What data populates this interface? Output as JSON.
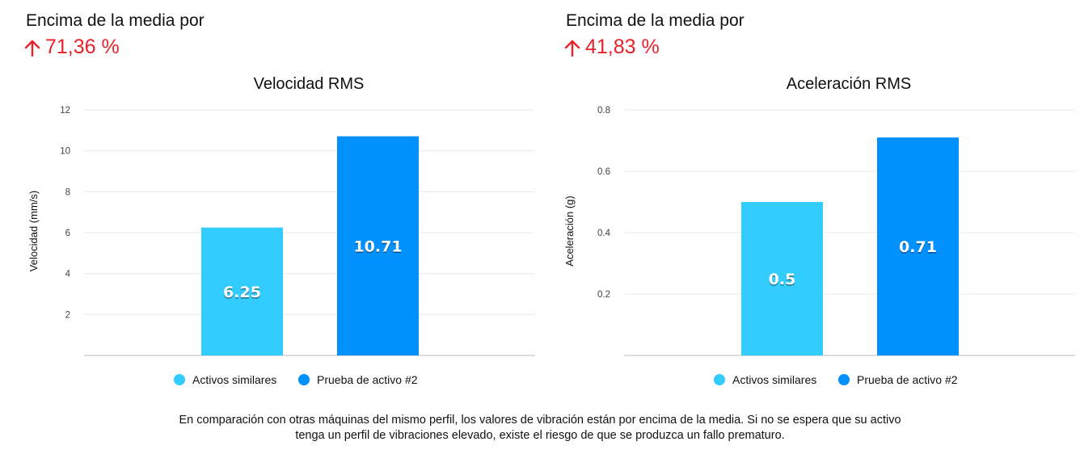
{
  "panels": [
    {
      "heading": "Encima de la media por",
      "delta": "71,36 %",
      "delta_color": "#e8212b"
    },
    {
      "heading": "Encima de la media por",
      "delta": "41,83 %",
      "delta_color": "#e8212b"
    }
  ],
  "chart_data": [
    {
      "type": "bar",
      "title": "Velocidad RMS",
      "xlabel": "",
      "ylabel": "Velocidad (mm/s)",
      "ylim": [
        0,
        12
      ],
      "yticks": [
        2,
        4,
        6,
        8,
        10,
        12
      ],
      "ytick_labels": [
        "2",
        "4",
        "6",
        "8",
        "10",
        "12"
      ],
      "grid": true,
      "legend_position": "bottom",
      "series": [
        {
          "name": "Activos similares",
          "value": 6.25,
          "label": "6.25",
          "color": "#33ccff"
        },
        {
          "name": "Prueba de activo #2",
          "value": 10.71,
          "label": "10.71",
          "color": "#0091ff"
        }
      ]
    },
    {
      "type": "bar",
      "title": "Aceleración RMS",
      "xlabel": "",
      "ylabel": "Aceleración (g)",
      "ylim": [
        0,
        0.8
      ],
      "yticks": [
        0.2,
        0.4,
        0.6,
        0.8
      ],
      "ytick_labels": [
        "0.2",
        "0.4",
        "0.6",
        "0.8"
      ],
      "grid": true,
      "legend_position": "bottom",
      "series": [
        {
          "name": "Activos similares",
          "value": 0.5,
          "label": "0.5",
          "color": "#33ccff"
        },
        {
          "name": "Prueba de activo #2",
          "value": 0.71,
          "label": "0.71",
          "color": "#0091ff"
        }
      ]
    }
  ],
  "footer": {
    "line1": "En comparación con otras máquinas del mismo perfil, los valores de vibración están por encima de la media. Si no se espera que su activo",
    "line2": "tenga un perfil de vibraciones elevado, existe el riesgo de que se produzca un fallo prematuro."
  }
}
